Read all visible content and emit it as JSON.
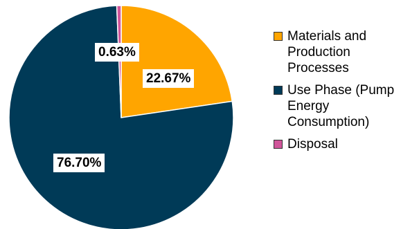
{
  "chart_data": {
    "type": "pie",
    "title": "",
    "slices": [
      {
        "name": "Materials and Production Processes",
        "value": 22.67,
        "label": "22.67%",
        "color": "#FFA500"
      },
      {
        "name": "Use Phase (Pump Energy Consumption)",
        "value": 76.7,
        "label": "76.70%",
        "color": "#003A57"
      },
      {
        "name": "Disposal",
        "value": 0.63,
        "label": "0.63%",
        "color": "#D0559A"
      }
    ],
    "legend": {
      "placement": "right",
      "items": [
        {
          "lines": [
            "Materials and",
            "Production",
            "Processes"
          ],
          "color": "#FFA500"
        },
        {
          "lines": [
            "Use Phase (Pump",
            "Energy",
            "Consumption)"
          ],
          "color": "#003A57"
        },
        {
          "lines": [
            "Disposal"
          ],
          "color": "#D0559A"
        }
      ]
    }
  }
}
